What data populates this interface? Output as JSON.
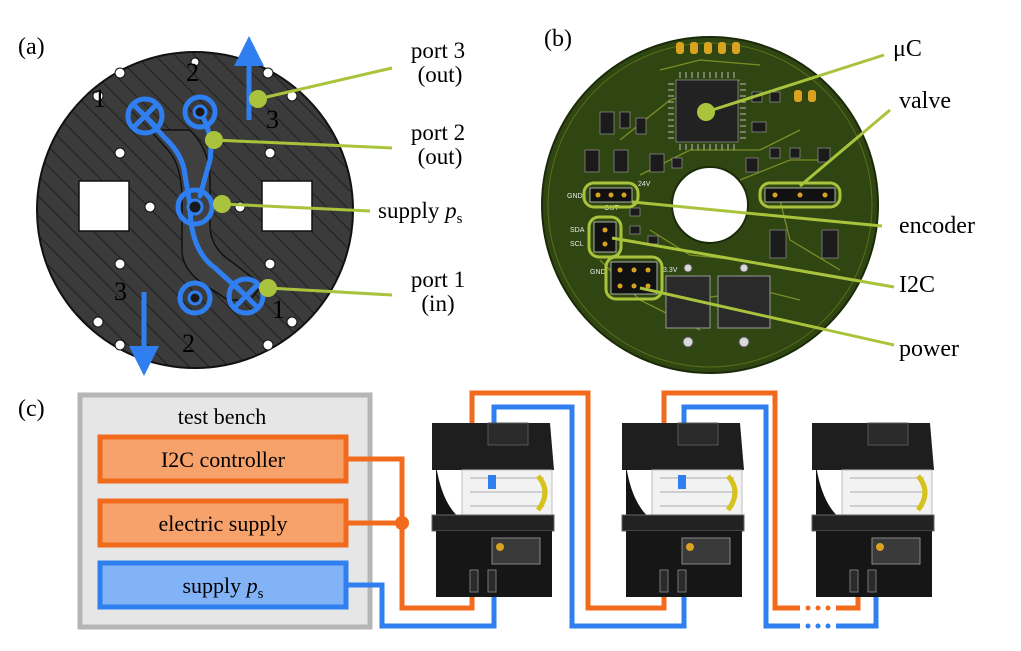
{
  "panels": {
    "a": {
      "tag": "(a)",
      "port_numbers": [
        "1",
        "2",
        "3",
        "1",
        "2",
        "3",
        "1",
        "2"
      ],
      "callouts": {
        "port3_line1": "port 3",
        "port3_line2": "(out)",
        "port2_line1": "port 2",
        "port2_line2": "(out)",
        "supply_word": "supply",
        "supply_sym": "p",
        "supply_sub": "s",
        "port1_line1": "port 1",
        "port1_line2": "(in)"
      }
    },
    "b": {
      "tag": "(b)",
      "callouts": {
        "uc": "μC",
        "valve": "valve",
        "encoder": "encoder",
        "i2c": "I2C",
        "power": "power"
      },
      "silkscreen": [
        "GND",
        "SDA",
        "SCL",
        "GND",
        "3.3V",
        "24V",
        "OUT"
      ]
    },
    "c": {
      "tag": "(c)",
      "test_bench_title": "test bench",
      "boxes": {
        "i2c_controller": "I2C controller",
        "electric_supply": "electric supply",
        "supply_word": "supply",
        "supply_sym": "p",
        "supply_sub": "s"
      },
      "colors": {
        "orange": "#f26b1d",
        "orange_fill": "#f7a26a",
        "blue": "#2f7ff0",
        "blue_fill": "#83b3f7",
        "bench_border": "#b5b5b5",
        "bench_fill": "#e6e6e6"
      }
    }
  },
  "colors": {
    "accent_blue": "#2f7ff0",
    "callout_green": "#a9c43c",
    "pcb_green": "#2f4612",
    "plate_dark": "#3a3a3a"
  }
}
